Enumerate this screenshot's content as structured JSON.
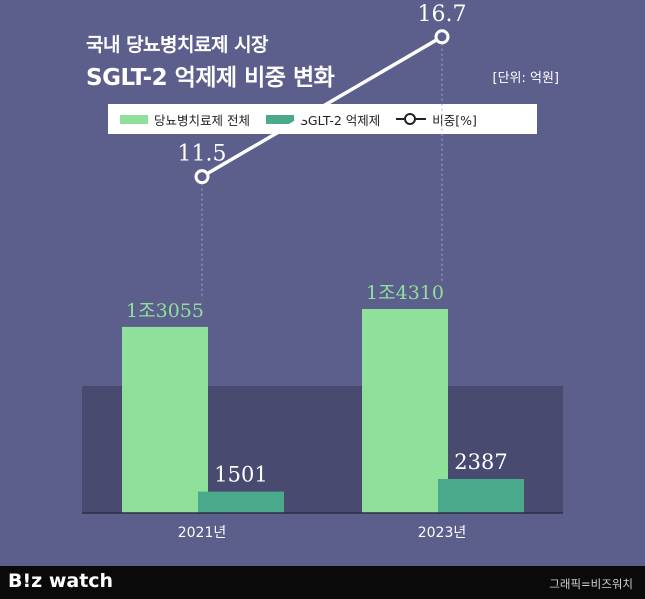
{
  "header": {
    "title_line1": "국내 당뇨병치료제 시장",
    "title_line2": "SGLT-2 억제제 비중 변화",
    "unit": "[단위: 억원]"
  },
  "legend": {
    "item1": "당뇨병치료제 전체",
    "item2": "SGLT-2 억제제",
    "item3": "비중[%]"
  },
  "chart_data": {
    "type": "bar",
    "title": "국내 당뇨병치료제 시장 SGLT-2 억제제 비중 변화",
    "unit": "억원",
    "categories": [
      "2021년",
      "2023년"
    ],
    "series": [
      {
        "name": "당뇨병치료제 전체",
        "values": [
          13055,
          14310
        ],
        "labels": [
          "1조3055",
          "1조4310"
        ],
        "color": "#8ee09b"
      },
      {
        "name": "SGLT-2 억제제",
        "values": [
          1501,
          2387
        ],
        "labels": [
          "1501",
          "2387"
        ],
        "color": "#4caa8c"
      }
    ],
    "line": {
      "name": "비중[%]",
      "type": "line",
      "values": [
        11.5,
        16.7
      ],
      "labels": [
        "11.5",
        "16.7"
      ]
    },
    "ylim": [
      0,
      14500
    ],
    "line_ylim": [
      0,
      20
    ]
  },
  "colors": {
    "background": "#5c5e8c",
    "plot_band": "#484a70",
    "total_bar": "#8ee09b",
    "sglt_bar": "#4caa8c",
    "line": "#ffffff"
  },
  "footer": {
    "brand": "B!z watch",
    "credit": "그래픽=비즈워치"
  }
}
